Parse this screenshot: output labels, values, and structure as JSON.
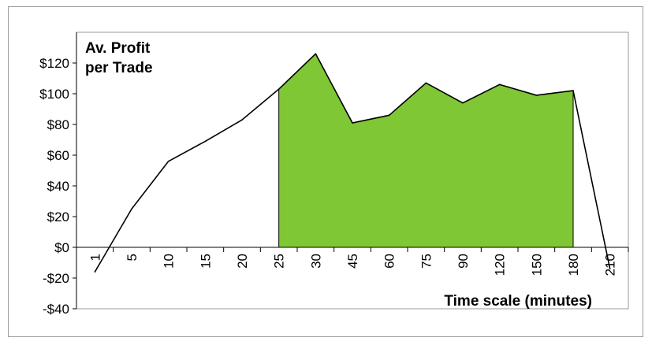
{
  "chart_data": {
    "type": "area",
    "ylabel_lines": [
      "Av. Profit",
      "per Trade"
    ],
    "xlabel": "Time scale (minutes)",
    "categories": [
      "1",
      "5",
      "10",
      "15",
      "20",
      "25",
      "30",
      "45",
      "60",
      "75",
      "90",
      "120",
      "150",
      "180",
      "210"
    ],
    "series": [
      {
        "values": [
          -16,
          25,
          56,
          69,
          83,
          103,
          126,
          81,
          86,
          107,
          94,
          106,
          99,
          102,
          -14
        ],
        "color": "#000000",
        "highlight_fill": "#7fc734",
        "highlight_range": [
          "25",
          "180"
        ]
      }
    ],
    "ylim": [
      -40,
      140
    ],
    "yticks": [
      -40,
      -20,
      0,
      20,
      40,
      60,
      80,
      100,
      120
    ],
    "ytick_labels": [
      "-$40",
      "-$20",
      "$0",
      "$20",
      "$40",
      "$60",
      "$80",
      "$100",
      "$120"
    ],
    "grid": false
  }
}
